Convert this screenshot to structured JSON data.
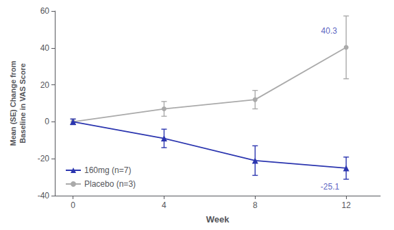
{
  "chart_data": {
    "type": "line",
    "xlabel": "Week",
    "ylabel": "Mean (SE) Change from\nBaseline in VAS Score",
    "x": [
      0,
      4,
      8,
      12
    ],
    "series": [
      {
        "name": "160mg (n=7)",
        "color": "#2b35af",
        "marker": "triangle",
        "line_style": "solid",
        "values": [
          0,
          -9,
          -21,
          -25.1
        ],
        "errors": [
          1.5,
          5,
          8,
          6
        ]
      },
      {
        "name": "Placebo (n=3)",
        "color": "#aaaaaa",
        "marker": "circle",
        "line_style": "solid",
        "values": [
          0,
          7,
          12,
          40.3
        ],
        "errors": [
          1.5,
          4,
          5,
          17
        ]
      }
    ],
    "xlim": [
      -0.8,
      13.5
    ],
    "xticks": [
      0,
      4,
      8,
      12
    ],
    "ylim": [
      -40,
      60
    ],
    "yticks": [
      -40,
      -20,
      0,
      20,
      40,
      60
    ],
    "grid": false,
    "legend": "lower left",
    "annotations": [
      {
        "text": "-25.1",
        "x": 11.7,
        "y": -33,
        "color": "#2b35af"
      },
      {
        "text": "40.3",
        "x": 11.6,
        "y": 47,
        "color": "#2b35af"
      }
    ]
  }
}
